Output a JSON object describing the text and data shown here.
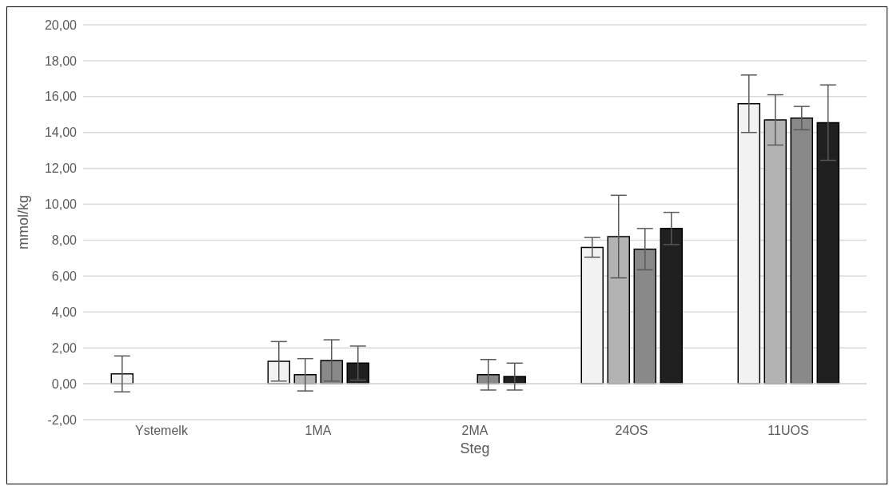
{
  "chart_data": {
    "type": "bar",
    "xlabel": "Steg",
    "ylabel": "mmol/kg",
    "categories": [
      "Ystemelk",
      "1MA",
      "2MA",
      "24OS",
      "11UOS"
    ],
    "series": [
      {
        "color": "#f2f2f2",
        "values": [
          0.55,
          1.25,
          0,
          7.6,
          15.6
        ],
        "errors": [
          1.0,
          1.1,
          null,
          0.55,
          1.6
        ]
      },
      {
        "color": "#b3b3b3",
        "values": [
          0,
          0.5,
          0,
          8.2,
          14.7
        ],
        "errors": [
          null,
          0.9,
          null,
          2.3,
          1.4
        ]
      },
      {
        "color": "#898989",
        "values": [
          0,
          1.3,
          0.5,
          7.5,
          14.8
        ],
        "errors": [
          null,
          1.15,
          0.85,
          1.15,
          0.65
        ]
      },
      {
        "color": "#202020",
        "values": [
          0,
          1.15,
          0.4,
          8.65,
          14.55
        ],
        "errors": [
          null,
          0.95,
          0.75,
          0.9,
          2.1
        ]
      }
    ],
    "ylim": [
      -2,
      20
    ],
    "yticks": [
      {
        "value": -2,
        "label": "-2,00"
      },
      {
        "value": 0,
        "label": "0,00"
      },
      {
        "value": 2,
        "label": "2,00"
      },
      {
        "value": 4,
        "label": "4,00"
      },
      {
        "value": 6,
        "label": "6,00"
      },
      {
        "value": 8,
        "label": "8,00"
      },
      {
        "value": 10,
        "label": "10,00"
      },
      {
        "value": 12,
        "label": "12,00"
      },
      {
        "value": 14,
        "label": "14,00"
      },
      {
        "value": 16,
        "label": "16,00"
      },
      {
        "value": 18,
        "label": "18,00"
      },
      {
        "value": 20,
        "label": "20,00"
      }
    ],
    "grid": "y",
    "legend": false
  }
}
